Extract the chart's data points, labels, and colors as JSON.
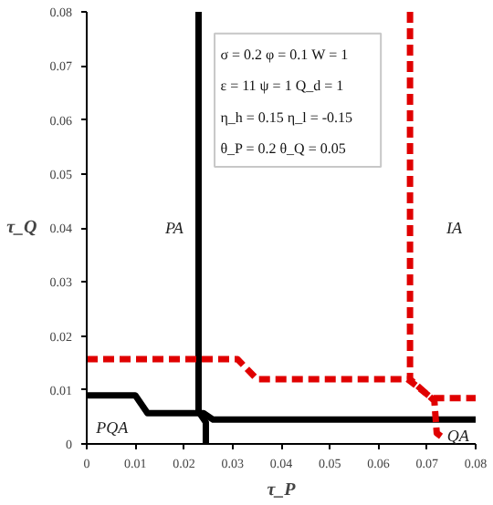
{
  "chart_data": {
    "type": "line",
    "xlabel": "τ_P",
    "ylabel": "τ_Q",
    "xlim": [
      0,
      0.08
    ],
    "ylim": [
      0,
      0.08
    ],
    "xticks": [
      0,
      0.01,
      0.02,
      0.03,
      0.04,
      0.05,
      0.06,
      0.07,
      0.08
    ],
    "yticks": [
      0,
      0.01,
      0.02,
      0.03,
      0.04,
      0.05,
      0.06,
      0.07,
      0.08
    ],
    "series": [
      {
        "color": "#000000",
        "line_style": "solid",
        "x": [
          0,
          0.01,
          0.0125,
          0.024,
          0.026,
          0.08
        ],
        "values": [
          0.009,
          0.009,
          0.0057,
          0.0057,
          0.0045,
          0.0045
        ]
      },
      {
        "color": "#000000",
        "line_style": "solid",
        "x": [
          0.023,
          0.023,
          0.0245,
          0.0245
        ],
        "values": [
          0.08,
          0.006,
          0.004,
          0
        ]
      },
      {
        "color": "#e00000",
        "line_style": "dashed",
        "x": [
          0,
          0.031,
          0.035,
          0.066,
          0.071,
          0.08
        ],
        "values": [
          0.0157,
          0.0157,
          0.012,
          0.012,
          0.0085,
          0.0085
        ]
      },
      {
        "color": "#e00000",
        "line_style": "dashed",
        "x": [
          0.0665,
          0.0665,
          0.0715,
          0.072,
          0.0735
        ],
        "values": [
          0.08,
          0.012,
          0.008,
          0.002,
          0.001
        ]
      }
    ],
    "annotations": [
      "PA",
      "IA",
      "PQA",
      "QA",
      "σ = 0.2 φ = 0.1 W = 1",
      "ε = 11  ψ = 1 Q_d = 1",
      "η_h = 0.15      η_l = -0.15",
      "θ_P = 0.2       θ_Q = 0.05"
    ]
  }
}
